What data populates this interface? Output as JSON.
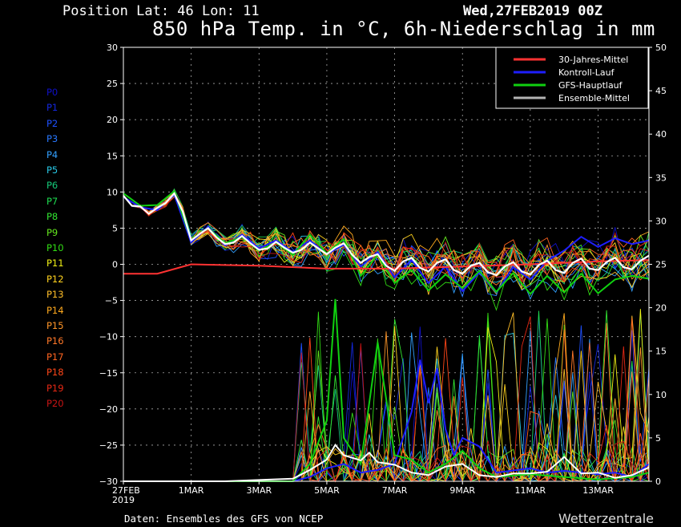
{
  "header": {
    "position_text": "Position  Lat: 46 Lon: 11",
    "datetime_text": "Wed,27FEB2019 00Z",
    "title": "850 hPa Temp. in °C, 6h-Niederschlag in mm"
  },
  "footer": {
    "source_text": "Daten: Ensembles des GFS von NCEP",
    "brand": "Wetterzentrale"
  },
  "members": [
    {
      "label": "P0",
      "color": "#1010c8"
    },
    {
      "label": "P1",
      "color": "#1428e0"
    },
    {
      "label": "P2",
      "color": "#1e50ff"
    },
    {
      "label": "P3",
      "color": "#2878ff"
    },
    {
      "label": "P4",
      "color": "#32a0ff"
    },
    {
      "label": "P5",
      "color": "#28c8e6"
    },
    {
      "label": "P6",
      "color": "#14c878"
    },
    {
      "label": "P7",
      "color": "#1edc50"
    },
    {
      "label": "P8",
      "color": "#32e632"
    },
    {
      "label": "P9",
      "color": "#64e61e"
    },
    {
      "label": "P10",
      "color": "#32dc14"
    },
    {
      "label": "P11",
      "color": "#f0f014"
    },
    {
      "label": "P12",
      "color": "#ffd21e"
    },
    {
      "label": "P13",
      "color": "#ffbe28"
    },
    {
      "label": "P14",
      "color": "#ffaa1e"
    },
    {
      "label": "P15",
      "color": "#ff9628"
    },
    {
      "label": "P16",
      "color": "#ff7828"
    },
    {
      "label": "P17",
      "color": "#ff6420"
    },
    {
      "label": "P18",
      "color": "#ff4618"
    },
    {
      "label": "P19",
      "color": "#e62814"
    },
    {
      "label": "P20",
      "color": "#c81414"
    }
  ],
  "chart_data": {
    "type": "line",
    "x_tick_labels": [
      "27FEB\n2019",
      "1MAR",
      "3MAR",
      "5MAR",
      "7MAR",
      "9MAR",
      "11MAR",
      "13MAR"
    ],
    "x_tick_days": [
      0,
      2,
      4,
      6,
      8,
      10,
      12,
      14
    ],
    "x_range_days": [
      0,
      15.5
    ],
    "y_left": {
      "range": [
        -30,
        30
      ],
      "ticks": [
        30,
        25,
        20,
        15,
        10,
        5,
        0,
        -5,
        -10,
        -15,
        -20,
        -25,
        -30
      ],
      "unit": "°C"
    },
    "y_right": {
      "range": [
        0,
        50
      ],
      "ticks": [
        50,
        45,
        40,
        35,
        30,
        25,
        20,
        15,
        10,
        5,
        0
      ],
      "unit": "mm"
    },
    "grid": true,
    "legend": {
      "placement": "top-right",
      "entries": [
        {
          "label": "30-Jahres-Mittel",
          "color": "#ff3232"
        },
        {
          "label": "Kontroll-Lauf",
          "color": "#1e1eff"
        },
        {
          "label": "GFS-Hauptlauf",
          "color": "#10d010"
        },
        {
          "label": "Ensemble-Mittel",
          "color": "#b4b4b4"
        }
      ]
    },
    "climate_mean_temp": [
      [
        0,
        -1.3
      ],
      [
        1,
        -1.3
      ],
      [
        2,
        0
      ],
      [
        4,
        -0.2
      ],
      [
        6,
        -0.6
      ],
      [
        8,
        -0.6
      ],
      [
        10,
        -0.3
      ],
      [
        12,
        0.0
      ],
      [
        14,
        0.4
      ],
      [
        15.5,
        0.6
      ]
    ],
    "ensemble_mean_temp": [
      [
        0,
        9.5
      ],
      [
        0.25,
        8.1
      ],
      [
        0.5,
        8.0
      ],
      [
        0.75,
        7.0
      ],
      [
        1,
        7.8
      ],
      [
        1.25,
        8.5
      ],
      [
        1.5,
        9.8
      ],
      [
        1.75,
        7.3
      ],
      [
        2,
        3.3
      ],
      [
        2.25,
        4.2
      ],
      [
        2.5,
        5.0
      ],
      [
        2.75,
        3.7
      ],
      [
        3,
        2.8
      ],
      [
        3.25,
        3.0
      ],
      [
        3.5,
        3.9
      ],
      [
        3.75,
        2.9
      ],
      [
        4,
        2.0
      ],
      [
        4.25,
        2.2
      ],
      [
        4.5,
        3.1
      ],
      [
        4.75,
        2.3
      ],
      [
        5,
        1.6
      ],
      [
        5.25,
        2.0
      ],
      [
        5.5,
        3.0
      ],
      [
        5.75,
        2.2
      ],
      [
        6,
        1.4
      ],
      [
        6.25,
        2.3
      ],
      [
        6.5,
        2.9
      ],
      [
        6.75,
        1.3
      ],
      [
        7,
        0.2
      ],
      [
        7.25,
        1.0
      ],
      [
        7.5,
        1.4
      ],
      [
        7.75,
        -0.2
      ],
      [
        8,
        -0.9
      ],
      [
        8.25,
        0.4
      ],
      [
        8.5,
        0.9
      ],
      [
        8.75,
        -0.5
      ],
      [
        9,
        -1.0
      ],
      [
        9.25,
        0.2
      ],
      [
        9.5,
        0.7
      ],
      [
        9.75,
        -0.8
      ],
      [
        10,
        -1.3
      ],
      [
        10.25,
        -0.2
      ],
      [
        10.5,
        0.2
      ],
      [
        10.75,
        -1.1
      ],
      [
        11,
        -1.5
      ],
      [
        11.25,
        -0.3
      ],
      [
        11.5,
        0.3
      ],
      [
        11.75,
        -1.0
      ],
      [
        12,
        -1.4
      ],
      [
        12.25,
        -0.1
      ],
      [
        12.5,
        0.5
      ],
      [
        12.75,
        -0.8
      ],
      [
        13,
        -1.2
      ],
      [
        13.25,
        0.2
      ],
      [
        13.5,
        0.8
      ],
      [
        13.75,
        -0.6
      ],
      [
        14,
        -0.8
      ],
      [
        14.25,
        0.3
      ],
      [
        14.5,
        0.9
      ],
      [
        14.75,
        -0.4
      ],
      [
        15,
        -0.7
      ],
      [
        15.25,
        0.5
      ],
      [
        15.5,
        1.2
      ]
    ],
    "control_run_temp": [
      [
        0,
        9.3
      ],
      [
        0.5,
        7.9
      ],
      [
        1,
        7.5
      ],
      [
        1.5,
        9.6
      ],
      [
        2,
        3.0
      ],
      [
        2.5,
        5.2
      ],
      [
        3,
        2.6
      ],
      [
        3.5,
        4.1
      ],
      [
        4,
        2.2
      ],
      [
        4.5,
        3.3
      ],
      [
        5,
        1.7
      ],
      [
        5.5,
        3.3
      ],
      [
        6,
        1.4
      ],
      [
        6.5,
        2.7
      ],
      [
        7,
        -0.3
      ],
      [
        7.5,
        1.7
      ],
      [
        8,
        -1.8
      ],
      [
        8.5,
        0.6
      ],
      [
        9,
        -2.6
      ],
      [
        9.5,
        -0.3
      ],
      [
        10,
        -3.7
      ],
      [
        10.5,
        -1.1
      ],
      [
        11,
        -3.9
      ],
      [
        11.5,
        -0.4
      ],
      [
        12,
        -2.1
      ],
      [
        12.5,
        0.5
      ],
      [
        13,
        1.9
      ],
      [
        13.5,
        3.8
      ],
      [
        14,
        2.4
      ],
      [
        14.5,
        3.6
      ],
      [
        15,
        2.8
      ],
      [
        15.5,
        3.3
      ]
    ],
    "main_run_temp": [
      [
        0,
        9.8
      ],
      [
        0.5,
        8.1
      ],
      [
        1,
        8.2
      ],
      [
        1.5,
        10.1
      ],
      [
        2,
        3.4
      ],
      [
        2.5,
        5.0
      ],
      [
        3,
        2.9
      ],
      [
        3.5,
        3.8
      ],
      [
        4,
        1.9
      ],
      [
        4.5,
        3.0
      ],
      [
        5,
        1.3
      ],
      [
        5.5,
        4.1
      ],
      [
        6,
        1.5
      ],
      [
        6.5,
        3.5
      ],
      [
        7,
        -1.6
      ],
      [
        7.5,
        1.3
      ],
      [
        8,
        -2.6
      ],
      [
        8.5,
        -0.8
      ],
      [
        9,
        -3.6
      ],
      [
        9.5,
        -1.4
      ],
      [
        10,
        -3.3
      ],
      [
        10.5,
        -0.9
      ],
      [
        11,
        -3.8
      ],
      [
        11.5,
        -1.2
      ],
      [
        12,
        -4.1
      ],
      [
        12.5,
        -1.6
      ],
      [
        13,
        -3.9
      ],
      [
        13.5,
        -1.3
      ],
      [
        14,
        -4.0
      ],
      [
        14.5,
        -2.1
      ],
      [
        15,
        -1.6
      ],
      [
        15.5,
        -2.0
      ]
    ],
    "ensemble_mean_precip": [
      [
        0,
        0
      ],
      [
        2,
        0
      ],
      [
        3,
        0
      ],
      [
        5,
        0.3
      ],
      [
        5.5,
        1.3
      ],
      [
        6,
        2.5
      ],
      [
        6.25,
        4.2
      ],
      [
        6.5,
        3.0
      ],
      [
        7,
        2.4
      ],
      [
        7.25,
        3.3
      ],
      [
        7.5,
        2.2
      ],
      [
        8,
        1.9
      ],
      [
        8.5,
        1.0
      ],
      [
        9,
        0.7
      ],
      [
        9.5,
        1.7
      ],
      [
        10,
        2.0
      ],
      [
        10.5,
        0.7
      ],
      [
        11,
        0.5
      ],
      [
        11.5,
        0.9
      ],
      [
        12,
        0.9
      ],
      [
        12.5,
        1.1
      ],
      [
        13,
        2.8
      ],
      [
        13.5,
        0.9
      ],
      [
        14,
        1.0
      ],
      [
        14.5,
        0.4
      ],
      [
        15,
        0.7
      ],
      [
        15.5,
        1.6
      ]
    ],
    "control_run_precip": [
      [
        0,
        0
      ],
      [
        5,
        0
      ],
      [
        5.5,
        0.5
      ],
      [
        6,
        1.5
      ],
      [
        6.5,
        2.0
      ],
      [
        7,
        1.0
      ],
      [
        7.5,
        1.3
      ],
      [
        8,
        2.0
      ],
      [
        8.5,
        8.0
      ],
      [
        8.75,
        14.0
      ],
      [
        9,
        9.0
      ],
      [
        9.25,
        13.0
      ],
      [
        9.5,
        6.0
      ],
      [
        9.75,
        3.0
      ],
      [
        10,
        5.0
      ],
      [
        10.5,
        4.0
      ],
      [
        11,
        1.0
      ],
      [
        12,
        1.5
      ],
      [
        12.5,
        1.0
      ],
      [
        13,
        1.2
      ],
      [
        14,
        0.8
      ],
      [
        14.5,
        1.0
      ],
      [
        15,
        0.5
      ],
      [
        15.5,
        2.0
      ]
    ],
    "main_run_precip": [
      [
        0,
        0
      ],
      [
        5,
        0
      ],
      [
        5.5,
        2.0
      ],
      [
        6,
        7.0
      ],
      [
        6.25,
        21.0
      ],
      [
        6.5,
        5.0
      ],
      [
        7,
        2.0
      ],
      [
        7.5,
        16.0
      ],
      [
        8,
        3.0
      ],
      [
        8.5,
        2.5
      ],
      [
        9,
        1.0
      ],
      [
        9.5,
        2.0
      ],
      [
        10,
        3.5
      ],
      [
        10.5,
        1.5
      ],
      [
        11,
        0.5
      ],
      [
        12,
        0.8
      ],
      [
        13,
        0.5
      ],
      [
        14,
        0.2
      ],
      [
        15,
        0.5
      ],
      [
        15.5,
        1.0
      ]
    ]
  }
}
